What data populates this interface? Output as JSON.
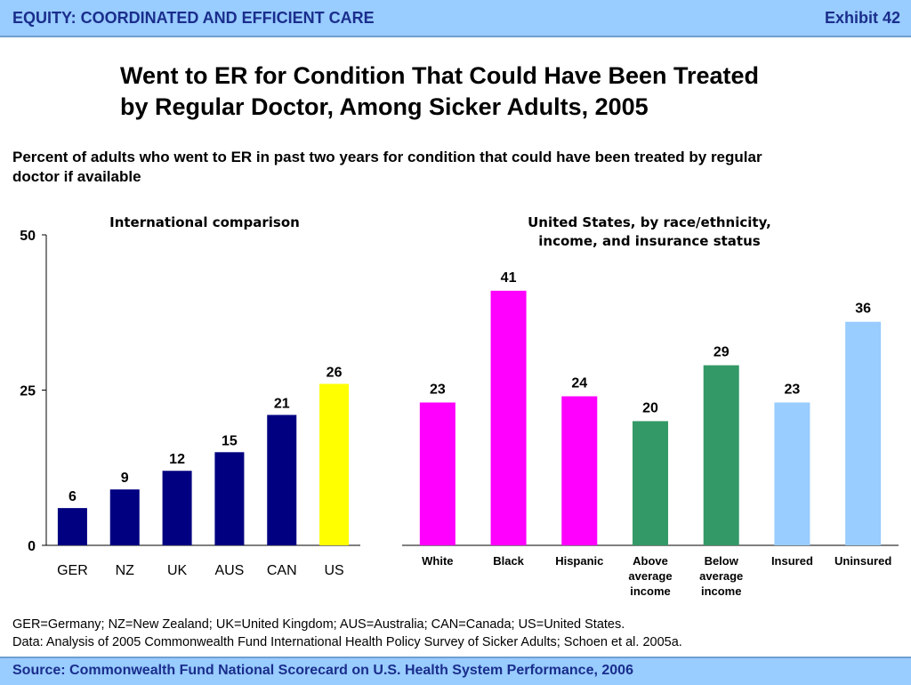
{
  "header": {
    "section": "EQUITY: COORDINATED AND EFFICIENT CARE",
    "exhibit": "Exhibit 42"
  },
  "title_line1": "Went to ER for Condition That Could Have Been Treated",
  "title_line2": "by Regular Doctor, Among Sicker Adults, 2005",
  "subtitle": "Percent of adults who went to ER in past two years for condition that could have been treated by regular doctor if available",
  "colors": {
    "navy": "#000080",
    "yellow": "#ffff00",
    "magenta": "#ff00ff",
    "green": "#339966",
    "lightblue": "#99ccff"
  },
  "chart_data": [
    {
      "type": "bar",
      "title": "International comparison",
      "categories": [
        "GER",
        "NZ",
        "UK",
        "AUS",
        "CAN",
        "US"
      ],
      "values": [
        6,
        9,
        12,
        15,
        21,
        26
      ],
      "bar_colors": [
        "#000080",
        "#000080",
        "#000080",
        "#000080",
        "#000080",
        "#ffff00"
      ],
      "ylim": [
        0,
        50
      ],
      "yticks": [
        0,
        25,
        50
      ],
      "grid": false,
      "data_labels": true
    },
    {
      "type": "bar",
      "title_lines": [
        "United States, by race/ethnicity,",
        "income, and insurance status"
      ],
      "categories": [
        [
          "White"
        ],
        [
          "Black"
        ],
        [
          "Hispanic"
        ],
        [
          "Above",
          "average",
          "income"
        ],
        [
          "Below",
          "average",
          "income"
        ],
        [
          "Insured"
        ],
        [
          "Uninsured"
        ]
      ],
      "values": [
        23,
        41,
        24,
        20,
        29,
        23,
        36
      ],
      "bar_colors": [
        "#ff00ff",
        "#ff00ff",
        "#ff00ff",
        "#339966",
        "#339966",
        "#99ccff",
        "#99ccff"
      ],
      "ylim": [
        0,
        50
      ],
      "grid": false,
      "data_labels": true
    }
  ],
  "footnote_line1": "GER=Germany; NZ=New Zealand; UK=United Kingdom; AUS=Australia; CAN=Canada; US=United States.",
  "footnote_line2": "Data: Analysis of 2005 Commonwealth Fund International Health Policy Survey of Sicker Adults; Schoen et al. 2005a.",
  "source": "Source: Commonwealth Fund National Scorecard on U.S. Health System Performance, 2006"
}
